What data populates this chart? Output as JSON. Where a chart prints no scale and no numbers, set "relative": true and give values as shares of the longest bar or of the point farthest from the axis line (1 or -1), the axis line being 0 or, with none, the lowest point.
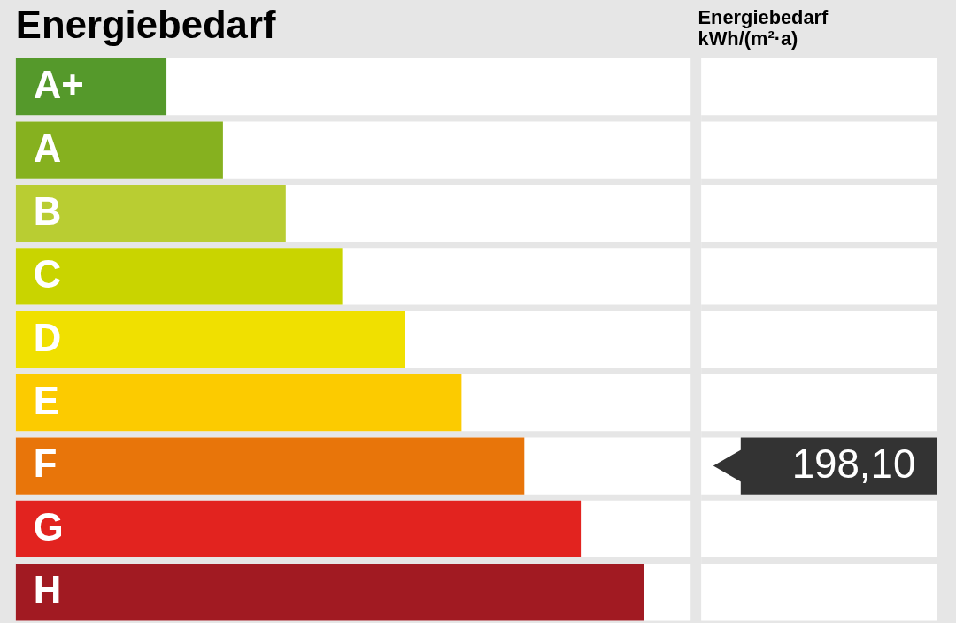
{
  "chart_data": [
    {
      "type": "bar",
      "orientation": "horizontal",
      "relative": true,
      "title": "Energiebedarf",
      "categories": [
        "A+",
        "A",
        "B",
        "C",
        "D",
        "E",
        "F",
        "G",
        "H"
      ],
      "values": [
        0.24,
        0.33,
        0.43,
        0.52,
        0.62,
        0.71,
        0.81,
        0.9,
        1
      ],
      "colors": [
        "#55992b",
        "#86b11f",
        "#b9cd32",
        "#c9d400",
        "#f0e000",
        "#fccb00",
        "#e8750a",
        "#e2231f",
        "#a11a22"
      ]
    },
    {
      "type": "other",
      "title": "Energiebedarf\nkWh/(m²·a)",
      "categories": [
        null,
        null,
        null,
        null,
        null,
        null,
        null,
        null,
        null
      ],
      "values": [
        null,
        null,
        null,
        null,
        null,
        null,
        198.1,
        null,
        null
      ],
      "value_labels": [
        null,
        null,
        null,
        null,
        null,
        null,
        "198,10",
        null,
        null
      ]
    }
  ]
}
